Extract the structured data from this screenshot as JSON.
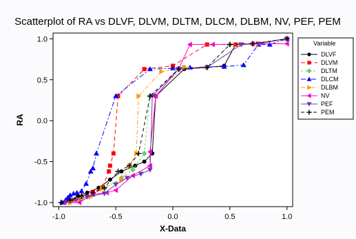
{
  "chart_data": {
    "type": "scatter",
    "title": "Scatterplot of RA vs DLVF, DLVM, DLTM, DLCM, DLBM, NV, PEF, PEM",
    "xlabel": "X-Data",
    "ylabel": "RA",
    "xlim": [
      -1.05,
      1.05
    ],
    "ylim": [
      -1.05,
      1.07
    ],
    "x_ticks": [
      -1.0,
      -0.5,
      0.0,
      0.5,
      1.0
    ],
    "x_tick_labels": [
      "-1.0",
      "-0.5",
      "0.0",
      "0.5",
      "1.0"
    ],
    "y_ticks": [
      -1.0,
      -0.5,
      0.0,
      0.5,
      1.0
    ],
    "y_tick_labels": [
      "-1.0",
      "-0.5",
      "0.0",
      "0.5",
      "1.0"
    ],
    "grid": false,
    "legend": {
      "title": "Variable",
      "placement": "right"
    },
    "series": [
      {
        "name": "DLVF",
        "color": "#000000",
        "marker": "circle",
        "dash": "solid",
        "points": [
          [
            -0.97,
            -1.0
          ],
          [
            -0.9,
            -0.97
          ],
          [
            -0.83,
            -0.92
          ],
          [
            -0.75,
            -0.88
          ],
          [
            -0.65,
            -0.82
          ],
          [
            -0.55,
            -0.72
          ],
          [
            -0.45,
            -0.62
          ],
          [
            -0.33,
            -0.55
          ],
          [
            -0.25,
            -0.5
          ],
          [
            -0.18,
            -0.4
          ],
          [
            -0.15,
            0.3
          ],
          [
            0.1,
            0.63
          ],
          [
            0.3,
            0.65
          ],
          [
            0.45,
            0.67
          ],
          [
            0.55,
            0.93
          ],
          [
            0.7,
            0.94
          ],
          [
            1.0,
            1.0
          ]
        ]
      },
      {
        "name": "DLVM",
        "color": "#ff0000",
        "marker": "square",
        "dash": "6,4",
        "points": [
          [
            -0.95,
            -1.0
          ],
          [
            -0.88,
            -0.97
          ],
          [
            -0.8,
            -0.93
          ],
          [
            -0.7,
            -0.87
          ],
          [
            -0.62,
            -0.82
          ],
          [
            -0.56,
            -0.62
          ],
          [
            -0.55,
            -0.55
          ],
          [
            -0.52,
            -0.4
          ],
          [
            -0.48,
            0.3
          ],
          [
            -0.25,
            0.63
          ],
          [
            0.0,
            0.67
          ],
          [
            0.3,
            0.93
          ],
          [
            0.55,
            0.93
          ],
          [
            0.7,
            0.94
          ],
          [
            1.0,
            1.0
          ]
        ]
      },
      {
        "name": "DLTM",
        "color": "#66cc66",
        "marker": "diamond",
        "dash": "3,3",
        "points": [
          [
            -0.9,
            -1.0
          ],
          [
            -0.8,
            -0.95
          ],
          [
            -0.7,
            -0.9
          ],
          [
            -0.6,
            -0.83
          ],
          [
            -0.45,
            -0.7
          ],
          [
            -0.35,
            -0.6
          ],
          [
            -0.25,
            -0.4
          ],
          [
            -0.2,
            0.3
          ],
          [
            0.1,
            0.65
          ],
          [
            0.3,
            0.65
          ],
          [
            0.5,
            0.93
          ],
          [
            0.7,
            0.94
          ],
          [
            1.0,
            1.0
          ]
        ]
      },
      {
        "name": "DLCM",
        "color": "#0000ff",
        "marker": "triangle-up",
        "dash": "7,3,2,3",
        "points": [
          [
            -0.97,
            -1.0
          ],
          [
            -0.94,
            -0.97
          ],
          [
            -0.92,
            -0.94
          ],
          [
            -0.9,
            -0.91
          ],
          [
            -0.87,
            -0.89
          ],
          [
            -0.84,
            -0.88
          ],
          [
            -0.8,
            -0.86
          ],
          [
            -0.76,
            -0.77
          ],
          [
            -0.72,
            -0.62
          ],
          [
            -0.7,
            -0.58
          ],
          [
            -0.67,
            -0.4
          ],
          [
            -0.5,
            0.3
          ],
          [
            -0.2,
            0.63
          ],
          [
            0.0,
            0.64
          ],
          [
            0.15,
            0.65
          ],
          [
            0.45,
            0.66
          ],
          [
            0.62,
            0.68
          ],
          [
            0.75,
            0.93
          ],
          [
            0.85,
            0.93
          ],
          [
            1.0,
            1.0
          ]
        ]
      },
      {
        "name": "DLBM",
        "color": "#ff9900",
        "marker": "triangle-right",
        "dash": "6,3,2,3",
        "points": [
          [
            -0.9,
            -1.0
          ],
          [
            -0.82,
            -0.97
          ],
          [
            -0.72,
            -0.93
          ],
          [
            -0.62,
            -0.83
          ],
          [
            -0.45,
            -0.72
          ],
          [
            -0.38,
            -0.55
          ],
          [
            -0.32,
            -0.4
          ],
          [
            -0.3,
            0.3
          ],
          [
            -0.1,
            0.6
          ],
          [
            0.1,
            0.65
          ],
          [
            0.3,
            0.65
          ],
          [
            0.6,
            0.93
          ],
          [
            0.75,
            0.94
          ],
          [
            1.0,
            1.0
          ]
        ]
      },
      {
        "name": "NV",
        "color": "#ff00cc",
        "marker": "triangle-left",
        "dash": "solid",
        "points": [
          [
            -0.95,
            -1.0
          ],
          [
            -0.82,
            -1.0
          ],
          [
            -0.7,
            -0.9
          ],
          [
            -0.58,
            -0.88
          ],
          [
            -0.5,
            -0.85
          ],
          [
            -0.35,
            -0.67
          ],
          [
            -0.2,
            -0.55
          ],
          [
            -0.2,
            -0.38
          ],
          [
            -0.15,
            0.3
          ],
          [
            0.05,
            0.63
          ],
          [
            0.15,
            0.93
          ],
          [
            0.35,
            0.93
          ],
          [
            0.7,
            0.94
          ],
          [
            1.0,
            0.94
          ]
        ]
      },
      {
        "name": "PEF",
        "color": "#7733bb",
        "marker": "triangle-down",
        "dash": "solid",
        "points": [
          [
            -0.95,
            -1.0
          ],
          [
            -0.85,
            -0.97
          ],
          [
            -0.75,
            -0.93
          ],
          [
            -0.6,
            -0.89
          ],
          [
            -0.5,
            -0.78
          ],
          [
            -0.4,
            -0.7
          ],
          [
            -0.28,
            -0.65
          ],
          [
            -0.2,
            -0.6
          ],
          [
            -0.18,
            0.3
          ],
          [
            0.05,
            0.63
          ],
          [
            0.3,
            0.65
          ],
          [
            0.6,
            0.93
          ],
          [
            0.75,
            0.94
          ],
          [
            1.0,
            1.0
          ]
        ]
      },
      {
        "name": "PEM",
        "color": "#000000",
        "marker": "cross",
        "dash": "5,4",
        "points": [
          [
            -0.98,
            -1.0
          ],
          [
            -0.9,
            -0.97
          ],
          [
            -0.8,
            -0.92
          ],
          [
            -0.7,
            -0.88
          ],
          [
            -0.6,
            -0.82
          ],
          [
            -0.48,
            -0.62
          ],
          [
            -0.38,
            -0.55
          ],
          [
            -0.3,
            -0.4
          ],
          [
            -0.2,
            0.3
          ],
          [
            0.05,
            0.63
          ],
          [
            0.3,
            0.65
          ],
          [
            0.5,
            0.93
          ],
          [
            0.7,
            0.94
          ],
          [
            1.0,
            1.0
          ]
        ]
      }
    ]
  }
}
